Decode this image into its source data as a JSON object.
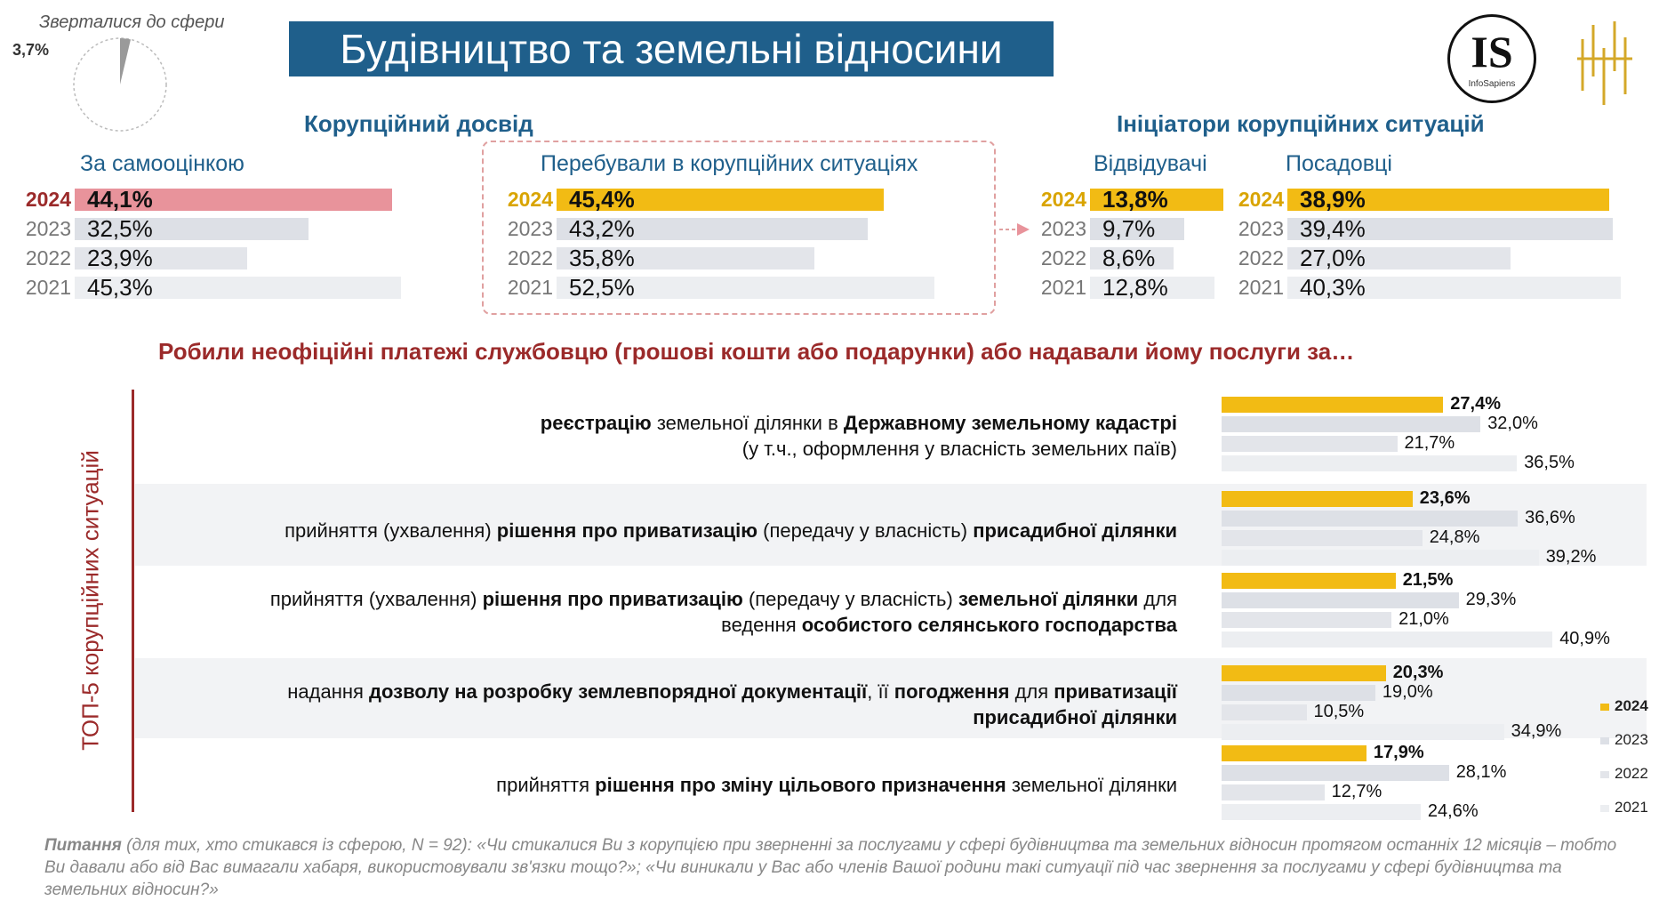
{
  "header": {
    "title": "Будівництво та земельні відносини",
    "pie_caption": "Зверталися до сфери",
    "pie_value_label": "3,7%",
    "pie_value": 3.7,
    "logo_text": "IS",
    "logo_subtext": "InfoSapiens"
  },
  "colors": {
    "highlight_2024": "#f2bb14",
    "highlight_2024_self": "#e8939b",
    "year_2024_self": "#9b2a2a",
    "year_2024": "#d9a400",
    "bar_2023": "#dde0e6",
    "bar_2022": "#e3e5ea",
    "bar_2021": "#eceef1",
    "section_blue": "#1f5f8b",
    "section_red": "#9b2a2a"
  },
  "sections": {
    "experience": "Корупційний досвід",
    "initiators": "Ініціатори корупційних ситуацій"
  },
  "top_charts": [
    {
      "title": "За самооцінкою",
      "data": [
        {
          "year": "2024",
          "value": 44.1,
          "label": "44,1%"
        },
        {
          "year": "2023",
          "value": 32.5,
          "label": "32,5%"
        },
        {
          "year": "2022",
          "value": 23.9,
          "label": "23,9%"
        },
        {
          "year": "2021",
          "value": 45.3,
          "label": "45,3%"
        }
      ]
    },
    {
      "title": "Перебували в корупційних ситуаціях",
      "data": [
        {
          "year": "2024",
          "value": 45.4,
          "label": "45,4%"
        },
        {
          "year": "2023",
          "value": 43.2,
          "label": "43,2%"
        },
        {
          "year": "2022",
          "value": 35.8,
          "label": "35,8%"
        },
        {
          "year": "2021",
          "value": 52.5,
          "label": "52,5%"
        }
      ]
    },
    {
      "title": "Відвідувачі",
      "data": [
        {
          "year": "2024",
          "value": 13.8,
          "label": "13,8%"
        },
        {
          "year": "2023",
          "value": 9.7,
          "label": "9,7%"
        },
        {
          "year": "2022",
          "value": 8.6,
          "label": "8,6%"
        },
        {
          "year": "2021",
          "value": 12.8,
          "label": "12,8%"
        }
      ]
    },
    {
      "title": "Посадовці",
      "data": [
        {
          "year": "2024",
          "value": 38.9,
          "label": "38,9%"
        },
        {
          "year": "2023",
          "value": 39.4,
          "label": "39,4%"
        },
        {
          "year": "2022",
          "value": 27.0,
          "label": "27,0%"
        },
        {
          "year": "2021",
          "value": 40.3,
          "label": "40,3%"
        }
      ]
    }
  ],
  "bottom": {
    "question": "Робили неофіційні платежі службовцю (грошові кошти або подарунки) або надавали йому послуги за…",
    "side_label": "ТОП-5 корупційних ситуацій",
    "legend": [
      "2024",
      "2023",
      "2022",
      "2021"
    ]
  },
  "situations": [
    {
      "lines": [
        [
          {
            "t": "реєстрацію",
            "b": true
          },
          {
            "t": " земельної ділянки в ",
            "b": false
          },
          {
            "t": "Державному земельному кадастрі",
            "b": true
          }
        ],
        [
          {
            "t": "(у т.ч., оформлення у власність земельних паїв)",
            "b": false
          }
        ]
      ],
      "values": [
        27.4,
        32.0,
        21.7,
        36.5
      ],
      "labels": [
        "27,4%",
        "32,0%",
        "21,7%",
        "36,5%"
      ]
    },
    {
      "lines": [
        [
          {
            "t": "прийняття (ухвалення) ",
            "b": false
          },
          {
            "t": "рішення про приватизацію",
            "b": true
          },
          {
            "t": " (передачу у власність) ",
            "b": false
          },
          {
            "t": "присадибної ділянки",
            "b": true
          }
        ]
      ],
      "values": [
        23.6,
        36.6,
        24.8,
        39.2
      ],
      "labels": [
        "23,6%",
        "36,6%",
        "24,8%",
        "39,2%"
      ]
    },
    {
      "lines": [
        [
          {
            "t": "прийняття (ухвалення) ",
            "b": false
          },
          {
            "t": "рішення про приватизацію",
            "b": true
          },
          {
            "t": " (передачу у власність) ",
            "b": false
          },
          {
            "t": "земельної ділянки",
            "b": true
          },
          {
            "t": " для",
            "b": false
          }
        ],
        [
          {
            "t": "ведення ",
            "b": false
          },
          {
            "t": "особистого селянського господарства",
            "b": true
          }
        ]
      ],
      "values": [
        21.5,
        29.3,
        21.0,
        40.9
      ],
      "labels": [
        "21,5%",
        "29,3%",
        "21,0%",
        "40,9%"
      ]
    },
    {
      "lines": [
        [
          {
            "t": "надання ",
            "b": false
          },
          {
            "t": "дозволу на розробку землевпорядної документації",
            "b": true
          },
          {
            "t": ", її ",
            "b": false
          },
          {
            "t": "погодження",
            "b": true
          },
          {
            "t": " для ",
            "b": false
          },
          {
            "t": "приватизації",
            "b": true
          }
        ],
        [
          {
            "t": "присадибної ділянки",
            "b": true
          }
        ]
      ],
      "values": [
        20.3,
        19.0,
        10.5,
        34.9
      ],
      "labels": [
        "20,3%",
        "19,0%",
        "10,5%",
        "34,9%"
      ]
    },
    {
      "lines": [
        [
          {
            "t": "прийняття ",
            "b": false
          },
          {
            "t": "рішення про зміну цільового призначення",
            "b": true
          },
          {
            "t": " земельної ділянки",
            "b": false
          }
        ]
      ],
      "values": [
        17.9,
        28.1,
        12.7,
        24.6
      ],
      "labels": [
        "17,9%",
        "28,1%",
        "12,7%",
        "24,6%"
      ]
    }
  ],
  "footer": {
    "lead": "Питання",
    "text": " (для тих, хто стикався із сферою, N = 92): «Чи стикалися Ви з корупцією при зверненні за послугами у сфері будівництва та земельних відносин протягом останніх 12 місяців – тобто Ви давали або від Вас вимагали хабаря, використовували зв'язки тощо?»; «Чи виникали у Вас або членів Вашої родини такі ситуації під час звернення за послугами у сфері будівництва та земельних відносин?»"
  },
  "chart_data": [
    {
      "type": "pie",
      "title": "Зверталися до сфери",
      "values": [
        3.7,
        96.3
      ],
      "labels": [
        "3,7%",
        ""
      ]
    },
    {
      "type": "bar",
      "title": "За самооцінкою",
      "categories": [
        "2024",
        "2023",
        "2022",
        "2021"
      ],
      "values": [
        44.1,
        32.5,
        23.9,
        45.3
      ]
    },
    {
      "type": "bar",
      "title": "Перебували в корупційних ситуаціях",
      "categories": [
        "2024",
        "2023",
        "2022",
        "2021"
      ],
      "values": [
        45.4,
        43.2,
        35.8,
        52.5
      ]
    },
    {
      "type": "bar",
      "title": "Відвідувачі",
      "categories": [
        "2024",
        "2023",
        "2022",
        "2021"
      ],
      "values": [
        13.8,
        9.7,
        8.6,
        12.8
      ]
    },
    {
      "type": "bar",
      "title": "Посадовці",
      "categories": [
        "2024",
        "2023",
        "2022",
        "2021"
      ],
      "values": [
        38.9,
        39.4,
        27.0,
        40.3
      ]
    },
    {
      "type": "bar",
      "title": "Робили неофіційні платежі службовцю (грошові кошти або подарунки) або надавали йому послуги за…",
      "categories": [
        "реєстрацію земельної ділянки в Державному земельному кадастрі",
        "рішення про приватизацію присадибної ділянки",
        "рішення про приватизацію земельної ділянки для ведення ОСГ",
        "дозвіл на розробку землевпорядної документації",
        "рішення про зміну цільового призначення земельної ділянки"
      ],
      "series": [
        {
          "name": "2024",
          "values": [
            27.4,
            23.6,
            21.5,
            20.3,
            17.9
          ]
        },
        {
          "name": "2023",
          "values": [
            32.0,
            36.6,
            29.3,
            19.0,
            28.1
          ]
        },
        {
          "name": "2022",
          "values": [
            21.7,
            24.8,
            21.0,
            10.5,
            12.7
          ]
        },
        {
          "name": "2021",
          "values": [
            36.5,
            39.2,
            40.9,
            34.9,
            24.6
          ]
        }
      ],
      "legend": "right"
    }
  ]
}
